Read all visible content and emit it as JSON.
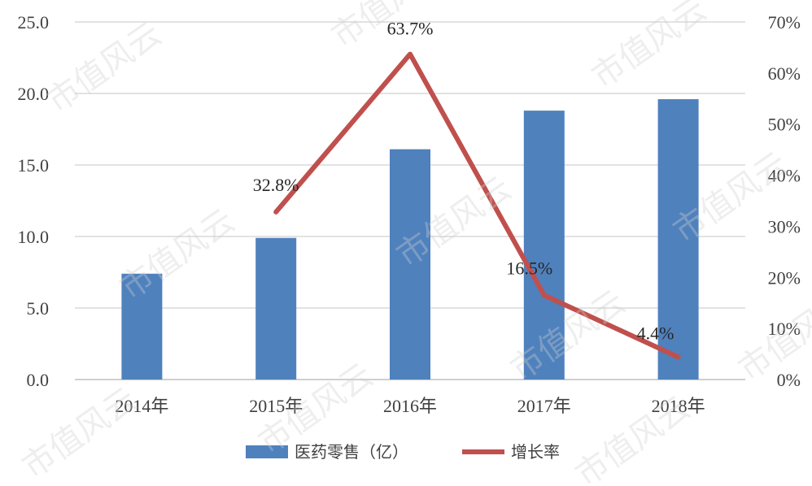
{
  "chart_data": {
    "type": "bar+line",
    "categories": [
      "2014年",
      "2015年",
      "2016年",
      "2017年",
      "2018年"
    ],
    "series": [
      {
        "name": "医药零售（亿）",
        "type": "bar",
        "axis": "left",
        "values": [
          7.4,
          9.9,
          16.1,
          18.8,
          19.6
        ],
        "color": "#4f81bd"
      },
      {
        "name": "增长率",
        "type": "line",
        "axis": "right",
        "values": [
          null,
          0.328,
          0.637,
          0.165,
          0.044
        ],
        "color": "#c0504d",
        "labels": [
          "",
          "32.8%",
          "63.7%",
          "16.5%",
          "4.4%"
        ]
      }
    ],
    "left_axis": {
      "min": 0,
      "max": 25,
      "step": 5,
      "ticks": [
        "0.0",
        "5.0",
        "10.0",
        "15.0",
        "20.0",
        "25.0"
      ]
    },
    "right_axis": {
      "min": 0,
      "max": 0.7,
      "step": 0.1,
      "ticks": [
        "0%",
        "10%",
        "20%",
        "30%",
        "40%",
        "50%",
        "60%",
        "70%"
      ]
    },
    "grid": true,
    "legend_position": "bottom",
    "watermark": "市值风云"
  }
}
